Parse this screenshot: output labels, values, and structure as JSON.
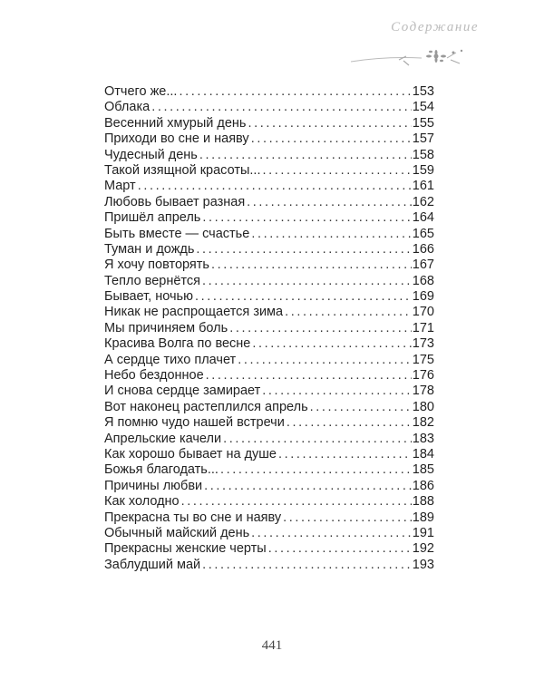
{
  "header": {
    "title": "Содержание",
    "ornament_icon": "flower-branch-icon"
  },
  "toc": [
    {
      "title": "Отчего же...",
      "page": "153"
    },
    {
      "title": "Облака",
      "page": "154"
    },
    {
      "title": "Весенний хмурый день",
      "page": "155"
    },
    {
      "title": "Приходи во сне и наяву",
      "page": "157"
    },
    {
      "title": "Чудесный день",
      "page": "158"
    },
    {
      "title": "Такой изящной красоты...",
      "page": "159"
    },
    {
      "title": "Март",
      "page": "161"
    },
    {
      "title": "Любовь бывает разная",
      "page": "162"
    },
    {
      "title": "Пришёл апрель",
      "page": "164"
    },
    {
      "title": "Быть вместе — счастье",
      "page": "165"
    },
    {
      "title": "Туман и дождь",
      "page": "166"
    },
    {
      "title": "Я хочу повторять",
      "page": "167"
    },
    {
      "title": "Тепло вернётся",
      "page": "168"
    },
    {
      "title": "Бывает, ночью",
      "page": "169"
    },
    {
      "title": "Никак не распрощается зима",
      "page": "170"
    },
    {
      "title": "Мы причиняем боль",
      "page": "171"
    },
    {
      "title": "Красива Волга по весне",
      "page": "173"
    },
    {
      "title": "А сердце тихо плачет",
      "page": "175"
    },
    {
      "title": "Небо бездонное",
      "page": "176"
    },
    {
      "title": "И снова сердце замирает",
      "page": "178"
    },
    {
      "title": "Вот наконец растеплился апрель",
      "page": "180"
    },
    {
      "title": "Я помню чудо нашей встречи",
      "page": "182"
    },
    {
      "title": "Апрельские качели",
      "page": "183"
    },
    {
      "title": "Как хорошо бывает на душе",
      "page": "184"
    },
    {
      "title": "Божья благодать...",
      "page": "185"
    },
    {
      "title": "Причины любви",
      "page": "186"
    },
    {
      "title": "Как холодно",
      "page": "188"
    },
    {
      "title": "Прекрасна ты во сне и наяву",
      "page": "189"
    },
    {
      "title": "Обычный майский день",
      "page": "191"
    },
    {
      "title": "Прекрасны женские черты",
      "page": "192"
    },
    {
      "title": "Заблудший май",
      "page": "193"
    }
  ],
  "footer": {
    "page_number": "441"
  }
}
